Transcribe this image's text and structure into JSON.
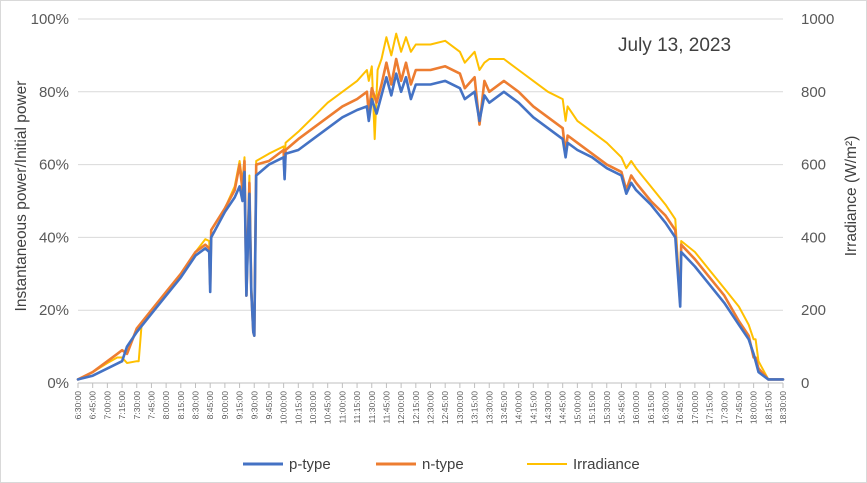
{
  "chart_data": {
    "type": "line",
    "annotation": "July 13, 2023",
    "ylabel": "Instantaneous power/Initial power",
    "y2label": "Irradiance  (W/m²)",
    "ylim": [
      0,
      100
    ],
    "y2lim": [
      0,
      1000
    ],
    "y_ticks": [
      "0%",
      "20%",
      "40%",
      "60%",
      "80%",
      "100%"
    ],
    "y2_ticks": [
      "0",
      "200",
      "400",
      "600",
      "800",
      "1000"
    ],
    "x_ticks": [
      "6:30:00",
      "6:45:00",
      "7:00:00",
      "7:15:00",
      "7:30:00",
      "7:45:00",
      "8:00:00",
      "8:15:00",
      "8:30:00",
      "8:45:00",
      "9:00:00",
      "9:15:00",
      "9:30:00",
      "9:45:00",
      "10:00:00",
      "10:15:00",
      "10:30:00",
      "10:45:00",
      "11:00:00",
      "11:15:00",
      "11:30:00",
      "11:45:00",
      "12:00:00",
      "12:15:00",
      "12:30:00",
      "12:45:00",
      "13:00:00",
      "13:15:00",
      "13:30:00",
      "13:45:00",
      "14:00:00",
      "14:15:00",
      "14:30:00",
      "14:45:00",
      "15:00:00",
      "15:15:00",
      "15:30:00",
      "15:45:00",
      "16:00:00",
      "16:15:00",
      "16:30:00",
      "16:45:00",
      "17:00:00",
      "17:15:00",
      "17:30:00",
      "17:45:00",
      "18:00:00",
      "18:15:00",
      "18:30:00"
    ],
    "grid": true,
    "legend_position": "bottom",
    "series": [
      {
        "name": "p-type",
        "axis": "left",
        "color": "#4472C4",
        "points": [
          [
            "6:30",
            1
          ],
          [
            "6:45",
            2
          ],
          [
            "7:00",
            4
          ],
          [
            "7:15",
            6
          ],
          [
            "7:20",
            10
          ],
          [
            "7:30",
            14
          ],
          [
            "7:45",
            19
          ],
          [
            "8:00",
            24
          ],
          [
            "8:15",
            29
          ],
          [
            "8:30",
            35
          ],
          [
            "8:40",
            37
          ],
          [
            "8:44",
            36
          ],
          [
            "8:45",
            25
          ],
          [
            "8:46",
            40
          ],
          [
            "9:00",
            47
          ],
          [
            "9:10",
            51
          ],
          [
            "9:15",
            54
          ],
          [
            "9:18",
            50
          ],
          [
            "9:20",
            58
          ],
          [
            "9:22",
            24
          ],
          [
            "9:25",
            52
          ],
          [
            "9:27",
            25
          ],
          [
            "9:29",
            14
          ],
          [
            "9:30",
            13
          ],
          [
            "9:32",
            57
          ],
          [
            "9:45",
            60
          ],
          [
            "10:00",
            62
          ],
          [
            "10:01",
            56
          ],
          [
            "10:02",
            63
          ],
          [
            "10:15",
            64
          ],
          [
            "10:30",
            67
          ],
          [
            "10:45",
            70
          ],
          [
            "11:00",
            73
          ],
          [
            "11:15",
            75
          ],
          [
            "11:25",
            76
          ],
          [
            "11:27",
            72
          ],
          [
            "11:30",
            78
          ],
          [
            "11:35",
            74
          ],
          [
            "11:40",
            79
          ],
          [
            "11:45",
            84
          ],
          [
            "11:50",
            79
          ],
          [
            "11:55",
            85
          ],
          [
            "12:00",
            80
          ],
          [
            "12:05",
            84
          ],
          [
            "12:10",
            78
          ],
          [
            "12:15",
            82
          ],
          [
            "12:30",
            82
          ],
          [
            "12:45",
            83
          ],
          [
            "13:00",
            81
          ],
          [
            "13:05",
            78
          ],
          [
            "13:15",
            80
          ],
          [
            "13:20",
            72
          ],
          [
            "13:25",
            79
          ],
          [
            "13:30",
            77
          ],
          [
            "13:45",
            80
          ],
          [
            "14:00",
            77
          ],
          [
            "14:15",
            73
          ],
          [
            "14:30",
            70
          ],
          [
            "14:45",
            67
          ],
          [
            "14:48",
            62
          ],
          [
            "14:50",
            66
          ],
          [
            "15:00",
            64
          ],
          [
            "15:15",
            62
          ],
          [
            "15:30",
            59
          ],
          [
            "15:45",
            57
          ],
          [
            "15:50",
            52
          ],
          [
            "15:55",
            55
          ],
          [
            "16:00",
            53
          ],
          [
            "16:15",
            49
          ],
          [
            "16:30",
            44
          ],
          [
            "16:40",
            40
          ],
          [
            "16:45",
            21
          ],
          [
            "16:46",
            36
          ],
          [
            "17:00",
            32
          ],
          [
            "17:15",
            27
          ],
          [
            "17:30",
            22
          ],
          [
            "17:45",
            16
          ],
          [
            "17:55",
            12
          ],
          [
            "18:00",
            8
          ],
          [
            "18:02",
            6
          ],
          [
            "18:05",
            3
          ],
          [
            "18:15",
            1
          ],
          [
            "18:30",
            1
          ]
        ]
      },
      {
        "name": "n-type",
        "axis": "left",
        "color": "#ED7D31",
        "points": [
          [
            "6:30",
            1
          ],
          [
            "6:45",
            3
          ],
          [
            "7:00",
            6
          ],
          [
            "7:10",
            8
          ],
          [
            "7:15",
            9
          ],
          [
            "7:20",
            8
          ],
          [
            "7:30",
            15
          ],
          [
            "7:45",
            20
          ],
          [
            "8:00",
            25
          ],
          [
            "8:15",
            30
          ],
          [
            "8:30",
            36
          ],
          [
            "8:40",
            38
          ],
          [
            "8:44",
            37
          ],
          [
            "8:45",
            27
          ],
          [
            "8:46",
            42
          ],
          [
            "9:00",
            48
          ],
          [
            "9:10",
            53
          ],
          [
            "9:15",
            60
          ],
          [
            "9:18",
            53
          ],
          [
            "9:20",
            61
          ],
          [
            "9:22",
            24
          ],
          [
            "9:25",
            55
          ],
          [
            "9:27",
            25
          ],
          [
            "9:29",
            14
          ],
          [
            "9:30",
            13
          ],
          [
            "9:32",
            60
          ],
          [
            "9:45",
            61
          ],
          [
            "10:00",
            64
          ],
          [
            "10:01",
            57
          ],
          [
            "10:02",
            64
          ],
          [
            "10:15",
            67
          ],
          [
            "10:30",
            70
          ],
          [
            "10:45",
            73
          ],
          [
            "11:00",
            76
          ],
          [
            "11:15",
            78
          ],
          [
            "11:25",
            80
          ],
          [
            "11:27",
            74
          ],
          [
            "11:30",
            81
          ],
          [
            "11:35",
            77
          ],
          [
            "11:40",
            82
          ],
          [
            "11:45",
            88
          ],
          [
            "11:50",
            82
          ],
          [
            "11:55",
            89
          ],
          [
            "12:00",
            83
          ],
          [
            "12:05",
            88
          ],
          [
            "12:10",
            82
          ],
          [
            "12:15",
            86
          ],
          [
            "12:30",
            86
          ],
          [
            "12:45",
            87
          ],
          [
            "13:00",
            85
          ],
          [
            "13:05",
            81
          ],
          [
            "13:15",
            84
          ],
          [
            "13:20",
            71
          ],
          [
            "13:25",
            83
          ],
          [
            "13:30",
            80
          ],
          [
            "13:45",
            83
          ],
          [
            "14:00",
            80
          ],
          [
            "14:15",
            76
          ],
          [
            "14:30",
            73
          ],
          [
            "14:45",
            70
          ],
          [
            "14:48",
            63
          ],
          [
            "14:50",
            68
          ],
          [
            "15:00",
            66
          ],
          [
            "15:15",
            63
          ],
          [
            "15:30",
            60
          ],
          [
            "15:45",
            58
          ],
          [
            "15:50",
            53
          ],
          [
            "15:55",
            57
          ],
          [
            "16:00",
            55
          ],
          [
            "16:15",
            50
          ],
          [
            "16:30",
            46
          ],
          [
            "16:40",
            42
          ],
          [
            "16:45",
            22
          ],
          [
            "16:46",
            38
          ],
          [
            "17:00",
            34
          ],
          [
            "17:15",
            29
          ],
          [
            "17:30",
            24
          ],
          [
            "17:45",
            17
          ],
          [
            "17:55",
            13
          ],
          [
            "18:00",
            7
          ],
          [
            "18:02",
            7
          ],
          [
            "18:05",
            4
          ],
          [
            "18:15",
            1
          ],
          [
            "18:30",
            1
          ]
        ]
      },
      {
        "name": "Irradiance",
        "axis": "right",
        "color": "#FFC000",
        "points": [
          [
            "6:30",
            10
          ],
          [
            "6:45",
            30
          ],
          [
            "7:00",
            55
          ],
          [
            "7:10",
            70
          ],
          [
            "7:15",
            70
          ],
          [
            "7:20",
            55
          ],
          [
            "7:30",
            60
          ],
          [
            "7:32",
            60
          ],
          [
            "7:35",
            160
          ],
          [
            "7:45",
            200
          ],
          [
            "8:00",
            250
          ],
          [
            "8:15",
            300
          ],
          [
            "8:30",
            360
          ],
          [
            "8:40",
            395
          ],
          [
            "8:44",
            390
          ],
          [
            "8:45",
            290
          ],
          [
            "8:46",
            420
          ],
          [
            "9:00",
            480
          ],
          [
            "9:10",
            540
          ],
          [
            "9:15",
            610
          ],
          [
            "9:18",
            550
          ],
          [
            "9:20",
            620
          ],
          [
            "9:22",
            270
          ],
          [
            "9:25",
            570
          ],
          [
            "9:27",
            270
          ],
          [
            "9:29",
            140
          ],
          [
            "9:30",
            135
          ],
          [
            "9:32",
            610
          ],
          [
            "9:45",
            630
          ],
          [
            "10:00",
            650
          ],
          [
            "10:01",
            620
          ],
          [
            "10:02",
            660
          ],
          [
            "10:15",
            690
          ],
          [
            "10:30",
            730
          ],
          [
            "10:45",
            770
          ],
          [
            "11:00",
            800
          ],
          [
            "11:15",
            830
          ],
          [
            "11:25",
            860
          ],
          [
            "11:27",
            830
          ],
          [
            "11:30",
            870
          ],
          [
            "11:33",
            670
          ],
          [
            "11:36",
            860
          ],
          [
            "11:40",
            890
          ],
          [
            "11:45",
            950
          ],
          [
            "11:50",
            900
          ],
          [
            "11:55",
            960
          ],
          [
            "12:00",
            910
          ],
          [
            "12:05",
            950
          ],
          [
            "12:10",
            910
          ],
          [
            "12:15",
            930
          ],
          [
            "12:30",
            930
          ],
          [
            "12:45",
            940
          ],
          [
            "13:00",
            910
          ],
          [
            "13:05",
            880
          ],
          [
            "13:15",
            910
          ],
          [
            "13:20",
            860
          ],
          [
            "13:25",
            880
          ],
          [
            "13:30",
            890
          ],
          [
            "13:45",
            890
          ],
          [
            "14:00",
            860
          ],
          [
            "14:15",
            830
          ],
          [
            "14:30",
            800
          ],
          [
            "14:45",
            780
          ],
          [
            "14:48",
            720
          ],
          [
            "14:50",
            760
          ],
          [
            "15:00",
            720
          ],
          [
            "15:15",
            690
          ],
          [
            "15:30",
            660
          ],
          [
            "15:45",
            620
          ],
          [
            "15:50",
            590
          ],
          [
            "15:55",
            610
          ],
          [
            "16:00",
            590
          ],
          [
            "16:15",
            540
          ],
          [
            "16:30",
            490
          ],
          [
            "16:40",
            450
          ],
          [
            "16:45",
            230
          ],
          [
            "16:46",
            390
          ],
          [
            "17:00",
            360
          ],
          [
            "17:15",
            310
          ],
          [
            "17:30",
            260
          ],
          [
            "17:45",
            210
          ],
          [
            "17:55",
            160
          ],
          [
            "18:00",
            120
          ],
          [
            "18:02",
            120
          ],
          [
            "18:05",
            60
          ],
          [
            "18:15",
            10
          ],
          [
            "18:30",
            10
          ]
        ]
      }
    ]
  }
}
